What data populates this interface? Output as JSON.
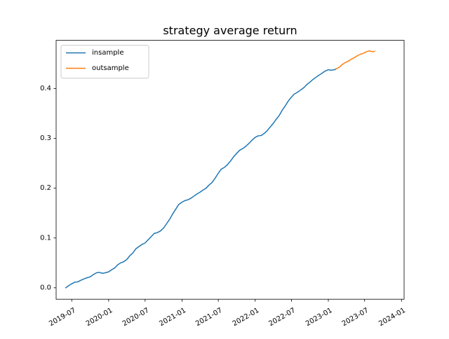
{
  "chart_data": {
    "type": "line",
    "title": "strategy average return",
    "xlabel": "",
    "ylabel": "",
    "x_axis_type": "date",
    "xlim": [
      "2019-04-14",
      "2024-01-14"
    ],
    "ylim": [
      -0.023,
      0.497
    ],
    "x_ticks": [
      "2019-07-01",
      "2020-01-01",
      "2020-07-01",
      "2021-01-01",
      "2021-07-01",
      "2022-01-01",
      "2022-07-01",
      "2023-01-01",
      "2023-07-01",
      "2024-01-01"
    ],
    "x_tick_labels": [
      "2019-07",
      "2020-01",
      "2020-07",
      "2021-01",
      "2021-07",
      "2022-01",
      "2022-07",
      "2023-01",
      "2023-07",
      "2024-01"
    ],
    "y_ticks": [
      0.0,
      0.1,
      0.2,
      0.3,
      0.4
    ],
    "y_tick_labels": [
      "0.0",
      "0.1",
      "0.2",
      "0.3",
      "0.4"
    ],
    "grid": false,
    "legend_position": "top-left",
    "series": [
      {
        "name": "insample",
        "color": "#1f77b4",
        "points": [
          [
            "2019-06-01",
            0.0
          ],
          [
            "2019-06-15",
            0.004
          ],
          [
            "2019-07-01",
            0.008
          ],
          [
            "2019-07-15",
            0.011
          ],
          [
            "2019-08-01",
            0.012
          ],
          [
            "2019-08-15",
            0.015
          ],
          [
            "2019-09-01",
            0.018
          ],
          [
            "2019-09-15",
            0.02
          ],
          [
            "2019-10-01",
            0.022
          ],
          [
            "2019-10-15",
            0.026
          ],
          [
            "2019-11-01",
            0.03
          ],
          [
            "2019-11-15",
            0.031
          ],
          [
            "2019-12-01",
            0.029
          ],
          [
            "2019-12-15",
            0.03
          ],
          [
            "2020-01-01",
            0.032
          ],
          [
            "2020-01-15",
            0.036
          ],
          [
            "2020-02-01",
            0.04
          ],
          [
            "2020-02-15",
            0.046
          ],
          [
            "2020-03-01",
            0.05
          ],
          [
            "2020-03-15",
            0.052
          ],
          [
            "2020-04-01",
            0.057
          ],
          [
            "2020-04-15",
            0.064
          ],
          [
            "2020-05-01",
            0.07
          ],
          [
            "2020-05-15",
            0.078
          ],
          [
            "2020-06-01",
            0.083
          ],
          [
            "2020-06-15",
            0.087
          ],
          [
            "2020-07-01",
            0.09
          ],
          [
            "2020-07-15",
            0.096
          ],
          [
            "2020-08-01",
            0.103
          ],
          [
            "2020-08-15",
            0.109
          ],
          [
            "2020-09-01",
            0.111
          ],
          [
            "2020-09-15",
            0.114
          ],
          [
            "2020-10-01",
            0.12
          ],
          [
            "2020-10-15",
            0.128
          ],
          [
            "2020-11-01",
            0.138
          ],
          [
            "2020-11-15",
            0.148
          ],
          [
            "2020-12-01",
            0.158
          ],
          [
            "2020-12-15",
            0.167
          ],
          [
            "2021-01-01",
            0.172
          ],
          [
            "2021-01-15",
            0.175
          ],
          [
            "2021-02-01",
            0.177
          ],
          [
            "2021-02-15",
            0.18
          ],
          [
            "2021-03-01",
            0.184
          ],
          [
            "2021-03-15",
            0.188
          ],
          [
            "2021-04-01",
            0.192
          ],
          [
            "2021-04-15",
            0.196
          ],
          [
            "2021-05-01",
            0.2
          ],
          [
            "2021-05-15",
            0.206
          ],
          [
            "2021-06-01",
            0.212
          ],
          [
            "2021-06-15",
            0.22
          ],
          [
            "2021-07-01",
            0.23
          ],
          [
            "2021-07-15",
            0.238
          ],
          [
            "2021-08-01",
            0.242
          ],
          [
            "2021-08-15",
            0.247
          ],
          [
            "2021-09-01",
            0.255
          ],
          [
            "2021-09-15",
            0.263
          ],
          [
            "2021-10-01",
            0.27
          ],
          [
            "2021-10-15",
            0.276
          ],
          [
            "2021-11-01",
            0.28
          ],
          [
            "2021-11-15",
            0.284
          ],
          [
            "2021-12-01",
            0.29
          ],
          [
            "2021-12-15",
            0.296
          ],
          [
            "2022-01-01",
            0.302
          ],
          [
            "2022-01-15",
            0.305
          ],
          [
            "2022-02-01",
            0.306
          ],
          [
            "2022-02-15",
            0.31
          ],
          [
            "2022-03-01",
            0.315
          ],
          [
            "2022-03-15",
            0.322
          ],
          [
            "2022-04-01",
            0.33
          ],
          [
            "2022-04-15",
            0.338
          ],
          [
            "2022-05-01",
            0.346
          ],
          [
            "2022-05-15",
            0.356
          ],
          [
            "2022-06-01",
            0.366
          ],
          [
            "2022-06-15",
            0.375
          ],
          [
            "2022-07-01",
            0.383
          ],
          [
            "2022-07-15",
            0.389
          ],
          [
            "2022-08-01",
            0.393
          ],
          [
            "2022-08-15",
            0.397
          ],
          [
            "2022-09-01",
            0.402
          ],
          [
            "2022-09-15",
            0.408
          ],
          [
            "2022-10-01",
            0.413
          ],
          [
            "2022-10-15",
            0.418
          ],
          [
            "2022-11-01",
            0.423
          ],
          [
            "2022-11-15",
            0.427
          ],
          [
            "2022-12-01",
            0.431
          ],
          [
            "2022-12-15",
            0.435
          ],
          [
            "2023-01-01",
            0.438
          ],
          [
            "2023-01-15",
            0.437
          ],
          [
            "2023-02-01",
            0.438
          ],
          [
            "2023-02-10",
            0.44
          ]
        ]
      },
      {
        "name": "outsample",
        "color": "#ff7f0e",
        "points": [
          [
            "2023-02-10",
            0.44
          ],
          [
            "2023-02-25",
            0.443
          ],
          [
            "2023-03-10",
            0.448
          ],
          [
            "2023-03-25",
            0.452
          ],
          [
            "2023-04-10",
            0.455
          ],
          [
            "2023-04-25",
            0.459
          ],
          [
            "2023-05-10",
            0.462
          ],
          [
            "2023-05-25",
            0.466
          ],
          [
            "2023-06-10",
            0.469
          ],
          [
            "2023-06-25",
            0.471
          ],
          [
            "2023-07-10",
            0.474
          ],
          [
            "2023-07-25",
            0.476
          ],
          [
            "2023-08-10",
            0.474
          ],
          [
            "2023-08-20",
            0.475
          ]
        ]
      }
    ]
  }
}
